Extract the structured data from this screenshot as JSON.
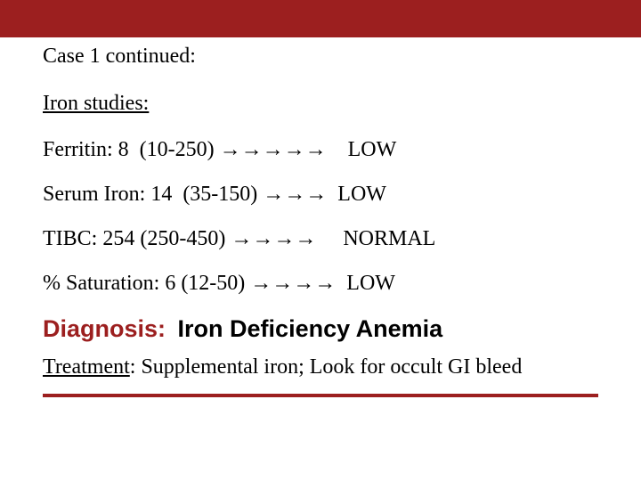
{
  "colors": {
    "accent": "#9c1f1f",
    "background": "#ffffff",
    "text": "#000000"
  },
  "typography": {
    "body_family": "Times New Roman",
    "heading_family": "Arial",
    "body_size_pt": 18,
    "heading_size_pt": 20,
    "heading_weight": 900
  },
  "header": {
    "case_title": "Case 1 continued:"
  },
  "section": {
    "title": "Iron studies:"
  },
  "labs": [
    {
      "label": "Ferritin:",
      "value": "8",
      "range": "(10-250)",
      "arrows": "→→→→→",
      "status": "LOW",
      "gap": "   "
    },
    {
      "label": "Serum Iron:",
      "value": " 14",
      "range": "(35-150)",
      "arrows": "→→→",
      "status": "LOW",
      "gap": " "
    },
    {
      "label": "TIBC:",
      "value": "254",
      "range": " (250-450)",
      "arrows": "→→→→",
      "status": "NORMAL",
      "gap": "    "
    },
    {
      "label": "% Saturation:",
      "value": "6",
      "range": " (12-50)",
      "arrows": "→→→→",
      "status": "LOW",
      "gap": " "
    }
  ],
  "diagnosis": {
    "label": "Diagnosis:",
    "value": "Iron Deficiency Anemia"
  },
  "treatment": {
    "label": "Treatment",
    "text": ": Supplemental iron; Look for occult GI bleed"
  }
}
